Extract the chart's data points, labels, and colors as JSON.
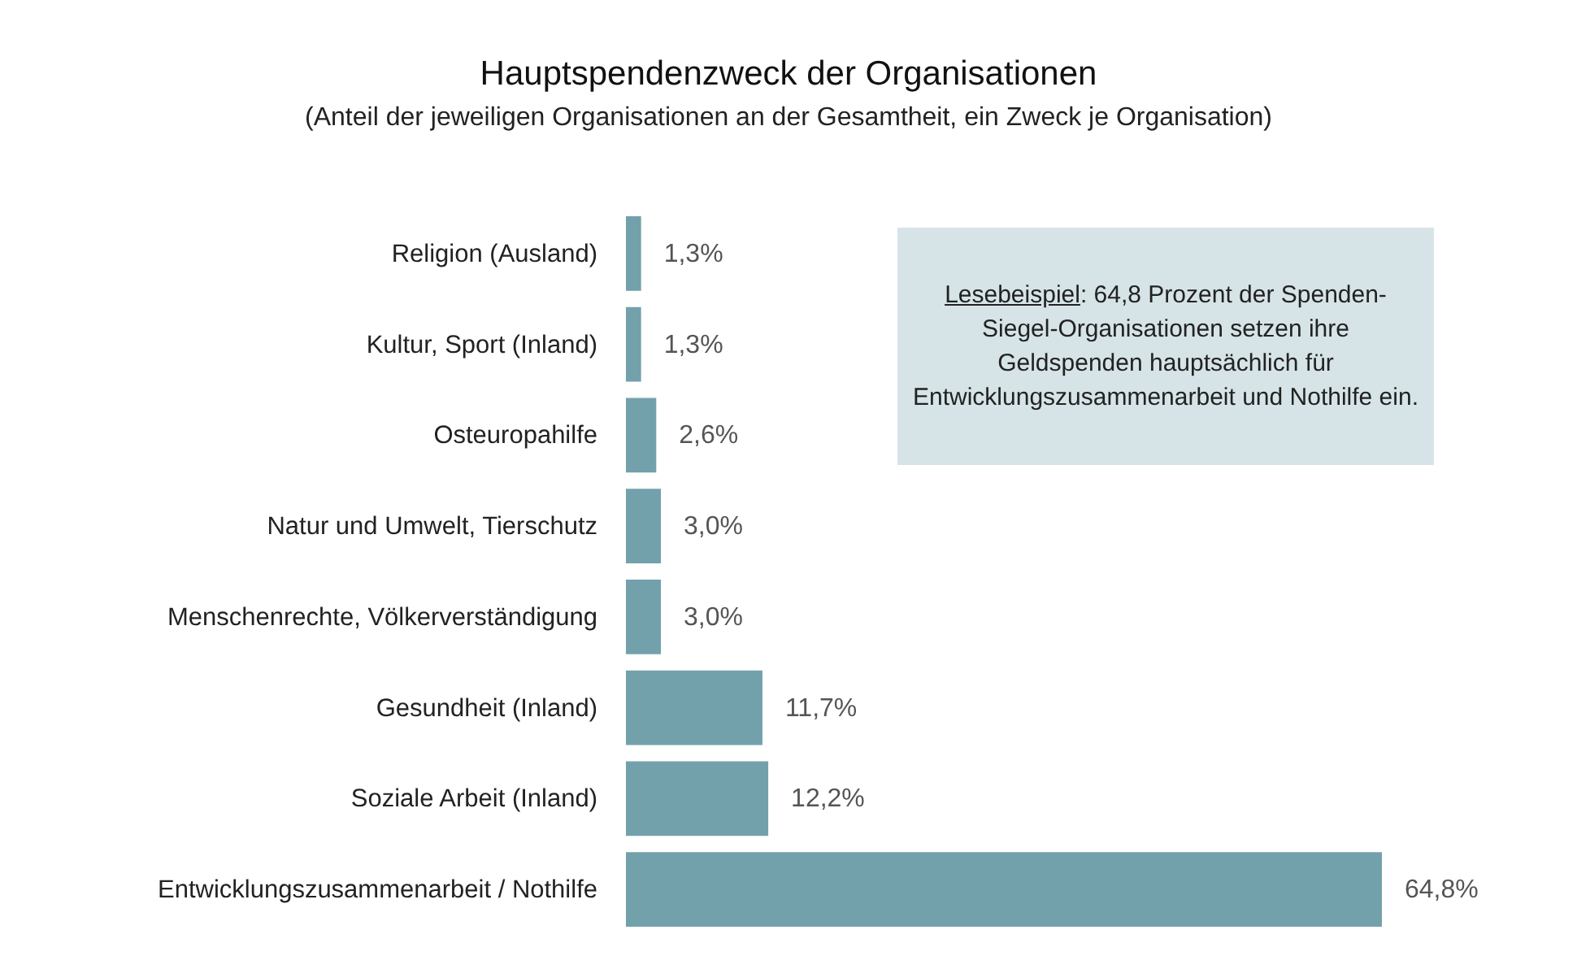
{
  "chart_data": {
    "type": "bar",
    "orientation": "horizontal",
    "title": "Hauptspendenzweck der Organisationen",
    "subtitle": "(Anteil der jeweiligen Organisationen an der Gesamtheit, ein Zweck je Organisation)",
    "categories": [
      "Religion (Ausland)",
      "Kultur, Sport (Inland)",
      "Osteuropahilfe",
      "Natur und Umwelt, Tierschutz",
      "Menschenrechte, Völkerverständigung",
      "Gesundheit (Inland)",
      "Soziale Arbeit (Inland)",
      "Entwicklungszusammenarbeit / Nothilfe"
    ],
    "values": [
      1.3,
      1.3,
      2.6,
      3.0,
      3.0,
      11.7,
      12.2,
      64.8
    ],
    "value_labels": [
      "1,3%",
      "1,3%",
      "2,6%",
      "3,0%",
      "3,0%",
      "11,7%",
      "12,2%",
      "64,8%"
    ],
    "color": "#73a1ab",
    "annotations": [
      "Lesebeispiel: 64,8 Prozent der Spenden-Siegel-Organisationen setzen ihre Geldspenden hauptsächlich für Entwicklungszusammenarbeit und Nothilfe ein."
    ]
  }
}
